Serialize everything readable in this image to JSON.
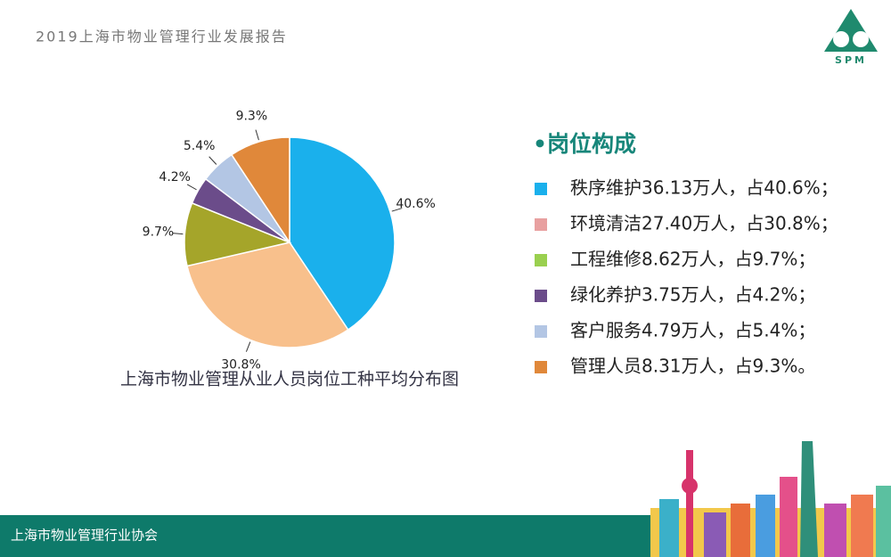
{
  "header": {
    "title": "2019上海市物业管理行业发展报告",
    "logo": "SPM"
  },
  "chart_data": {
    "type": "pie",
    "values": [
      40.6,
      30.8,
      9.7,
      4.2,
      5.4,
      9.3
    ],
    "value_labels": [
      "40.6%",
      "30.8%",
      "9.7%",
      "4.2%",
      "5.4%",
      "9.3%"
    ],
    "colors": [
      "#1ab0ec",
      "#f8c08c",
      "#a5a52a",
      "#6b4c8a",
      "#b3c6e4",
      "#e0883a"
    ],
    "caption": "上海市物业管理从业人员岗位工种平均分布图"
  },
  "legend": {
    "title": "•岗位构成",
    "items": [
      "秩序维护36.13万人，占40.6%；",
      "环境清洁27.40万人，占30.8%；",
      "工程维修8.62万人，占9.7%；",
      "绿化养护3.75万人，占4.2%；",
      "客户服务4.79万人，占5.4%；",
      "管理人员8.31万人，占9.3%。"
    ],
    "colors": [
      "#1ab0ec",
      "#e8a0a0",
      "#9ad04f",
      "#6b4c8a",
      "#b3c6e4",
      "#e0883a"
    ]
  },
  "footer": {
    "text": "上海市物业管理行业协会"
  }
}
